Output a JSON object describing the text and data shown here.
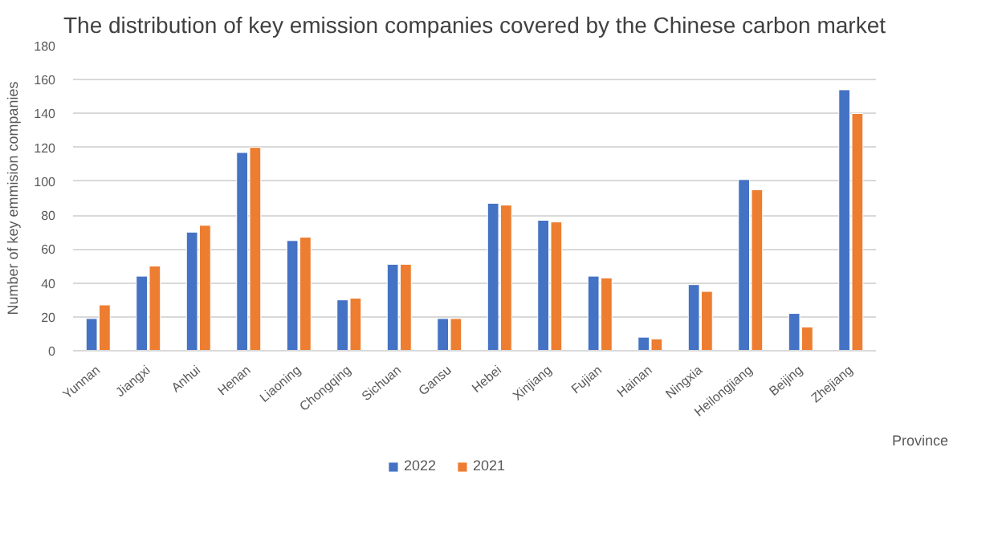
{
  "chart_data": {
    "type": "bar",
    "title": "The distribution of key emission companies covered by the Chinese carbon market",
    "xlabel": "Province",
    "ylabel": "Number of key emmision companies",
    "categories": [
      "Yunnan",
      "Jiangxi",
      "Anhui",
      "Henan",
      "Liaoning",
      "Chongqing",
      "Sichuan",
      "Gansu",
      "Hebei",
      "Xinjiang",
      "Fujian",
      "Hainan",
      "Ningxia",
      "Heilongjiang",
      "Beijing",
      "Zhejiang"
    ],
    "series": [
      {
        "name": "2022",
        "color": "#4472c4",
        "values": [
          19,
          44,
          70,
          117,
          65,
          30,
          51,
          19,
          87,
          77,
          44,
          8,
          39,
          101,
          22,
          154
        ]
      },
      {
        "name": "2021",
        "color": "#ed7d31",
        "values": [
          27,
          50,
          74,
          120,
          67,
          31,
          51,
          19,
          86,
          76,
          43,
          7,
          35,
          95,
          14,
          140
        ]
      }
    ],
    "ylim": [
      0,
      180
    ],
    "yticks": [
      0,
      20,
      40,
      60,
      80,
      100,
      120,
      140,
      160,
      180
    ],
    "grid": "y",
    "legend": "bottom"
  }
}
